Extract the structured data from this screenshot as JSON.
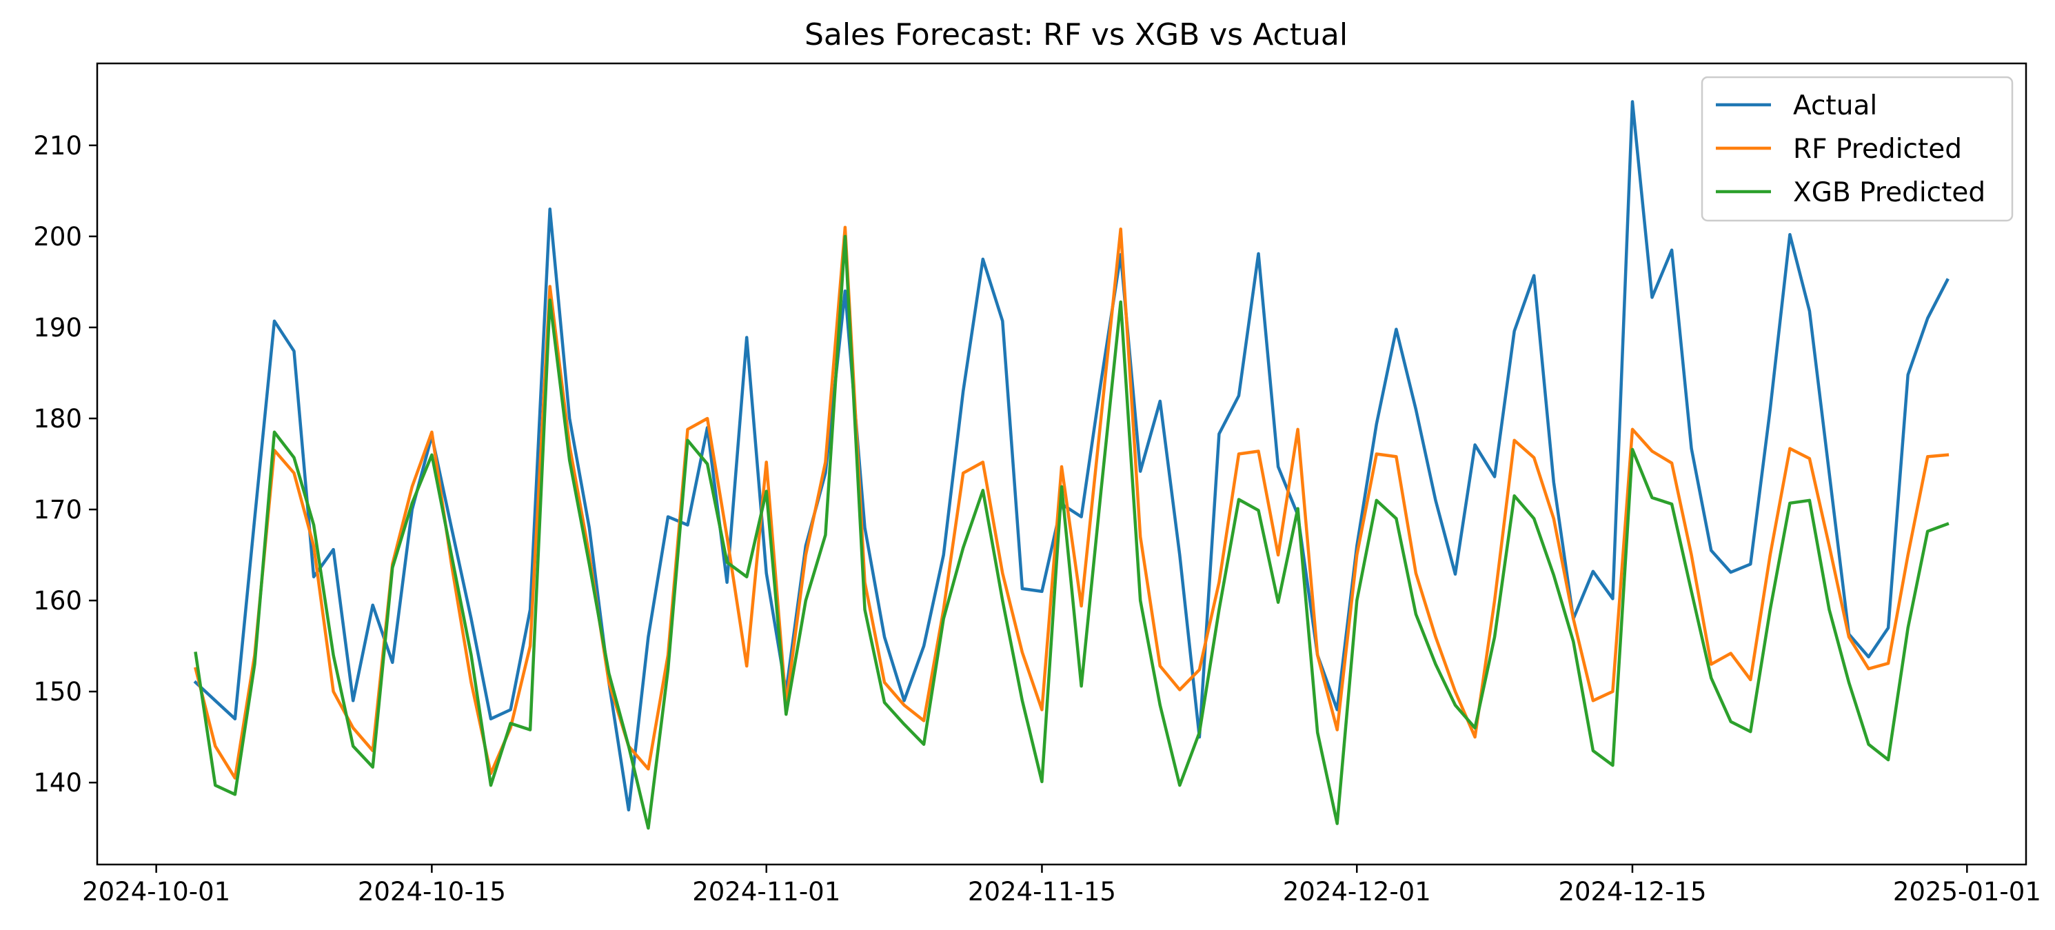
{
  "chart_data": {
    "type": "line",
    "title": "Sales Forecast: RF vs XGB vs Actual",
    "xlabel": "",
    "ylabel": "",
    "x_start": "2024-10-03",
    "x_count": 90,
    "xlim": [
      "2024-09-28",
      "2025-01-04"
    ],
    "ylim": [
      131,
      219
    ],
    "x_ticks": [
      "2024-10-01",
      "2024-10-15",
      "2024-11-01",
      "2024-11-15",
      "2024-12-01",
      "2024-12-15",
      "2025-01-01"
    ],
    "y_ticks": [
      140,
      150,
      160,
      170,
      180,
      190,
      200,
      210
    ],
    "grid": false,
    "legend_position": "top-right",
    "series": [
      {
        "name": "Actual",
        "color": "#1f77b4",
        "values": [
          151,
          149,
          147,
          169,
          190.7,
          187.4,
          162.6,
          165.6,
          149,
          159.5,
          153.2,
          170,
          178.1,
          168,
          158,
          147,
          148,
          159,
          203,
          180,
          168,
          151,
          137,
          156,
          169.2,
          168.3,
          179,
          162,
          188.9,
          163,
          150,
          166,
          174,
          194,
          168,
          156,
          149,
          155,
          165,
          183,
          197.5,
          190.7,
          161.3,
          161,
          170.6,
          169.2,
          184,
          198,
          174.2,
          181.9,
          165,
          145,
          178.3,
          182.5,
          198.1,
          174.7,
          169.4,
          154,
          148,
          166,
          179.4,
          189.8,
          181,
          171,
          162.9,
          177.1,
          173.6,
          189.6,
          195.7,
          173,
          158,
          163.2,
          160.2,
          214.8,
          193.3,
          198.5,
          176.7,
          165.5,
          163.1,
          164,
          181,
          200.2,
          191.8,
          174,
          156.3,
          153.8,
          157,
          184.8,
          191,
          195.2
        ]
      },
      {
        "name": "RF Predicted",
        "color": "#ff7f0e",
        "values": [
          152.5,
          144,
          140.5,
          154,
          176.5,
          174,
          166,
          150,
          146,
          143.5,
          164,
          172.5,
          178.5,
          164,
          151,
          141,
          146,
          155,
          194.5,
          177,
          165,
          151,
          144,
          141.5,
          154,
          178.8,
          180,
          167,
          152.8,
          175.2,
          148.5,
          165,
          175.2,
          201,
          162,
          151,
          148.5,
          146.8,
          159,
          174,
          175.2,
          163,
          154.3,
          148,
          174.7,
          159.4,
          180,
          200.8,
          167,
          152.8,
          150.2,
          152.4,
          162,
          176.1,
          176.4,
          165,
          178.8,
          154,
          145.8,
          165,
          176.1,
          175.8,
          163,
          156,
          150,
          145,
          160,
          177.6,
          175.7,
          169,
          158,
          149,
          150,
          178.8,
          176.4,
          175.1,
          165,
          153,
          154.2,
          151.3,
          165,
          176.7,
          175.6,
          166,
          156,
          152.5,
          153.1,
          165,
          175.8,
          176
        ]
      },
      {
        "name": "XGB Predicted",
        "color": "#2ca02c",
        "values": [
          154.2,
          139.7,
          138.7,
          153,
          178.5,
          175.7,
          168.3,
          154,
          144,
          141.7,
          163.6,
          170.7,
          176,
          165,
          154,
          139.7,
          146.5,
          145.8,
          193,
          175.4,
          164,
          152,
          144,
          135,
          152.4,
          177.6,
          175,
          164.2,
          162.6,
          172,
          147.5,
          160,
          167.2,
          200,
          159,
          148.8,
          146.4,
          144.2,
          158,
          165.8,
          172.1,
          160,
          149,
          140.1,
          172.5,
          150.6,
          172,
          192.8,
          160,
          148.5,
          139.7,
          145.5,
          159,
          171.1,
          169.9,
          159.8,
          170.1,
          145.5,
          135.5,
          160,
          171,
          169,
          158.5,
          153,
          148.5,
          146,
          156,
          171.5,
          169,
          162.8,
          155.5,
          143.5,
          141.9,
          176.6,
          171.3,
          170.6,
          161,
          151.5,
          146.7,
          145.6,
          159,
          170.7,
          171,
          159,
          151,
          144.2,
          142.5,
          157,
          167.6,
          168.4
        ]
      }
    ]
  }
}
